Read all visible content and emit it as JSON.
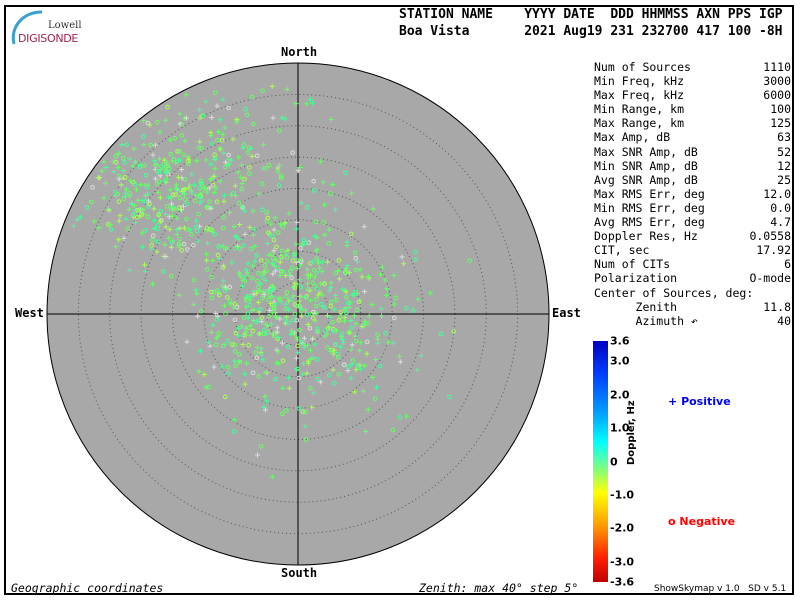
{
  "logo": {
    "line1": "Lowell",
    "line2": "DIGISONDE"
  },
  "header": {
    "line1": "STATION NAME    YYYY DATE  DDD HHMMSS AXN PPS IGP",
    "line2": "Boa Vista       2021 Aug19 231 232700 417 100 -8H"
  },
  "directions": {
    "north": "North",
    "south": "South",
    "east": "East",
    "west": "West"
  },
  "stats": [
    {
      "label": "Num of Sources",
      "value": "1110"
    },
    {
      "label": "Min Freq, kHz",
      "value": "3000"
    },
    {
      "label": "Max Freq, kHz",
      "value": "6000"
    },
    {
      "label": "Min Range, km",
      "value": "100"
    },
    {
      "label": "Max Range, km",
      "value": "125"
    },
    {
      "label": "Max Amp, dB",
      "value": "63"
    },
    {
      "label": "Max SNR Amp, dB",
      "value": "52"
    },
    {
      "label": "Min SNR Amp, dB",
      "value": "12"
    },
    {
      "label": "Avg SNR Amp, dB",
      "value": "25"
    },
    {
      "label": "Max RMS Err, deg",
      "value": "12.0"
    },
    {
      "label": "Min RMS Err, deg",
      "value": "0.0"
    },
    {
      "label": "Avg RMS Err, deg",
      "value": "4.7"
    },
    {
      "label": "Doppler Res, Hz",
      "value": "0.0558"
    },
    {
      "label": "CIT, sec",
      "value": "17.92"
    },
    {
      "label": "Num of CITs",
      "value": "6"
    },
    {
      "label": "Polarization",
      "value": "O-mode"
    },
    {
      "label": "Center of Sources, deg:",
      "value": ""
    },
    {
      "label": "      Zenith",
      "value": "11.8"
    },
    {
      "label": "      Azimuth ↶",
      "value": "40"
    }
  ],
  "colorbar": {
    "title": "Doppler, Hz",
    "ticks": [
      "3.6",
      "3.0",
      "2.0",
      "1.0",
      "0",
      "-1.0",
      "-2.0",
      "-3.0",
      "-3.6"
    ],
    "tick_values": [
      3.6,
      3.0,
      2.0,
      1.0,
      0,
      -1.0,
      -2.0,
      -3.0,
      -3.6
    ]
  },
  "legend": {
    "positive": "Positive",
    "negative": "Negative",
    "positive_symbol": "+",
    "negative_symbol": "o",
    "positive_color": "#0000ff",
    "negative_color": "#ff0000"
  },
  "footer": {
    "left": "Geographic coordinates",
    "center": "Zenith: max 40°  step 5°",
    "right": "ShowSkymap v 1.0   SD v 5.1"
  },
  "plot": {
    "max_zenith_deg": 40,
    "step_deg": 5,
    "background": "#a8a8a8"
  }
}
